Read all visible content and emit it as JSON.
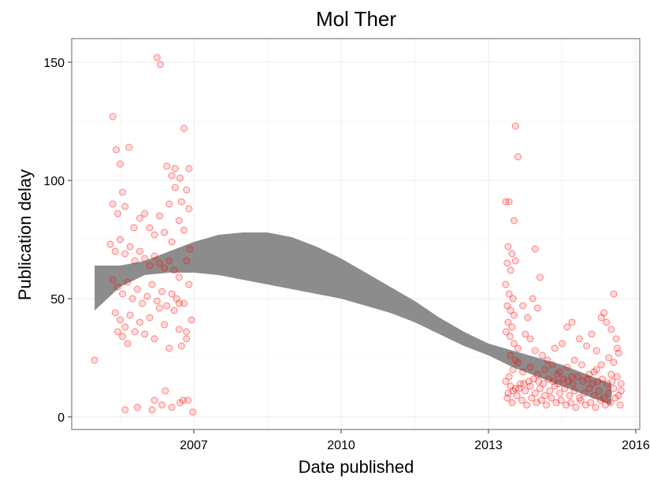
{
  "chart_data": {
    "type": "scatter",
    "title": "Mol Ther",
    "xlabel": "Date published",
    "ylabel": "Publication delay",
    "x_ticks": [
      {
        "x": 2007,
        "label": "2007"
      },
      {
        "x": 2010,
        "label": "2010"
      },
      {
        "x": 2013,
        "label": "2013"
      },
      {
        "x": 2016,
        "label": "2016"
      }
    ],
    "y_ticks": [
      {
        "y": 0,
        "label": "0"
      },
      {
        "y": 50,
        "label": "50"
      },
      {
        "y": 100,
        "label": "100"
      },
      {
        "y": 150,
        "label": "150"
      }
    ],
    "xlim": [
      2004.4,
      2016
    ],
    "ylim": [
      -5,
      160
    ],
    "grid": true,
    "point_color": "#ff0000",
    "band_color": "#8c8c8c",
    "smooth_band": [
      {
        "x": 2004.98,
        "lo": 45,
        "hi": 64
      },
      {
        "x": 2005.5,
        "lo": 55,
        "hi": 64
      },
      {
        "x": 2006.0,
        "lo": 60,
        "hi": 66
      },
      {
        "x": 2006.5,
        "lo": 61,
        "hi": 70
      },
      {
        "x": 2007.0,
        "lo": 61,
        "hi": 74
      },
      {
        "x": 2007.5,
        "lo": 60,
        "hi": 77
      },
      {
        "x": 2008.0,
        "lo": 58,
        "hi": 78
      },
      {
        "x": 2008.5,
        "lo": 56,
        "hi": 78
      },
      {
        "x": 2009.0,
        "lo": 54,
        "hi": 76
      },
      {
        "x": 2009.5,
        "lo": 52,
        "hi": 72
      },
      {
        "x": 2010.0,
        "lo": 50,
        "hi": 67
      },
      {
        "x": 2010.5,
        "lo": 47,
        "hi": 61
      },
      {
        "x": 2011.0,
        "lo": 44,
        "hi": 55
      },
      {
        "x": 2011.5,
        "lo": 40,
        "hi": 49
      },
      {
        "x": 2012.0,
        "lo": 35,
        "hi": 42
      },
      {
        "x": 2012.5,
        "lo": 30,
        "hi": 36
      },
      {
        "x": 2013.0,
        "lo": 26,
        "hi": 31
      },
      {
        "x": 2013.5,
        "lo": 21,
        "hi": 28
      },
      {
        "x": 2014.0,
        "lo": 17,
        "hi": 25
      },
      {
        "x": 2014.5,
        "lo": 13,
        "hi": 22
      },
      {
        "x": 2015.0,
        "lo": 9,
        "hi": 18
      },
      {
        "x": 2015.5,
        "lo": 5,
        "hi": 14
      }
    ],
    "points": [
      [
        2004.98,
        24
      ],
      [
        2005.35,
        127
      ],
      [
        2005.42,
        113
      ],
      [
        2005.5,
        107
      ],
      [
        2005.68,
        114
      ],
      [
        2005.55,
        95
      ],
      [
        2005.35,
        90
      ],
      [
        2005.45,
        86
      ],
      [
        2005.6,
        89
      ],
      [
        2005.78,
        80
      ],
      [
        2005.9,
        84
      ],
      [
        2006.0,
        86
      ],
      [
        2006.1,
        80
      ],
      [
        2006.2,
        77
      ],
      [
        2005.3,
        73
      ],
      [
        2005.4,
        70
      ],
      [
        2005.5,
        75
      ],
      [
        2005.6,
        69
      ],
      [
        2005.7,
        72
      ],
      [
        2005.8,
        66
      ],
      [
        2005.9,
        70
      ],
      [
        2006.0,
        67
      ],
      [
        2006.1,
        64
      ],
      [
        2006.2,
        68
      ],
      [
        2006.3,
        65
      ],
      [
        2006.4,
        63
      ],
      [
        2006.5,
        66
      ],
      [
        2006.6,
        62
      ],
      [
        2005.35,
        58
      ],
      [
        2005.45,
        55
      ],
      [
        2005.55,
        52
      ],
      [
        2005.65,
        57
      ],
      [
        2005.75,
        50
      ],
      [
        2005.85,
        54
      ],
      [
        2005.95,
        48
      ],
      [
        2006.05,
        51
      ],
      [
        2006.15,
        56
      ],
      [
        2006.25,
        49
      ],
      [
        2006.35,
        53
      ],
      [
        2006.45,
        47
      ],
      [
        2006.55,
        52
      ],
      [
        2006.65,
        50
      ],
      [
        2005.4,
        44
      ],
      [
        2005.5,
        41
      ],
      [
        2005.6,
        38
      ],
      [
        2005.7,
        43
      ],
      [
        2005.8,
        36
      ],
      [
        2005.9,
        40
      ],
      [
        2006.0,
        35
      ],
      [
        2006.1,
        42
      ],
      [
        2006.2,
        33
      ],
      [
        2006.3,
        46
      ],
      [
        2006.4,
        39
      ],
      [
        2006.5,
        29
      ],
      [
        2006.6,
        45
      ],
      [
        2006.7,
        37
      ],
      [
        2005.45,
        36
      ],
      [
        2005.55,
        34
      ],
      [
        2005.65,
        31
      ],
      [
        2006.75,
        30
      ],
      [
        2006.8,
        48
      ],
      [
        2006.85,
        36
      ],
      [
        2006.25,
        152
      ],
      [
        2006.32,
        149
      ],
      [
        2006.8,
        122
      ],
      [
        2006.45,
        106
      ],
      [
        2006.62,
        105
      ],
      [
        2006.9,
        105
      ],
      [
        2006.55,
        102
      ],
      [
        2006.72,
        101
      ],
      [
        2006.62,
        97
      ],
      [
        2006.85,
        96
      ],
      [
        2006.75,
        91
      ],
      [
        2006.9,
        88
      ],
      [
        2006.5,
        90
      ],
      [
        2006.3,
        85
      ],
      [
        2006.7,
        83
      ],
      [
        2006.8,
        79
      ],
      [
        2006.4,
        78
      ],
      [
        2006.55,
        74
      ],
      [
        2006.92,
        71
      ],
      [
        2006.85,
        66
      ],
      [
        2006.7,
        59
      ],
      [
        2006.9,
        56
      ],
      [
        2006.95,
        41
      ],
      [
        2006.85,
        33
      ],
      [
        2006.7,
        48
      ],
      [
        2005.6,
        3
      ],
      [
        2005.85,
        4
      ],
      [
        2006.15,
        3
      ],
      [
        2006.35,
        5
      ],
      [
        2006.42,
        11
      ],
      [
        2006.55,
        4
      ],
      [
        2006.72,
        6
      ],
      [
        2006.78,
        7
      ],
      [
        2006.88,
        7
      ],
      [
        2006.98,
        2
      ],
      [
        2006.2,
        7
      ],
      [
        2013.35,
        91
      ],
      [
        2013.42,
        91
      ],
      [
        2013.55,
        123
      ],
      [
        2013.6,
        110
      ],
      [
        2013.52,
        83
      ],
      [
        2013.95,
        71
      ],
      [
        2014.05,
        59
      ],
      [
        2013.4,
        72
      ],
      [
        2013.48,
        69
      ],
      [
        2013.38,
        65
      ],
      [
        2013.45,
        62
      ],
      [
        2013.55,
        66
      ],
      [
        2013.35,
        56
      ],
      [
        2013.42,
        52
      ],
      [
        2013.5,
        50
      ],
      [
        2013.38,
        47
      ],
      [
        2013.45,
        45
      ],
      [
        2013.52,
        43
      ],
      [
        2013.4,
        40
      ],
      [
        2013.48,
        38
      ],
      [
        2013.36,
        36
      ],
      [
        2013.44,
        34
      ],
      [
        2013.52,
        31
      ],
      [
        2013.6,
        29
      ],
      [
        2013.7,
        47
      ],
      [
        2013.8,
        42
      ],
      [
        2013.9,
        50
      ],
      [
        2014.0,
        46
      ],
      [
        2013.75,
        35
      ],
      [
        2013.85,
        33
      ],
      [
        2013.95,
        28
      ],
      [
        2014.1,
        26
      ],
      [
        2014.2,
        24
      ],
      [
        2014.35,
        29
      ],
      [
        2014.5,
        31
      ],
      [
        2014.6,
        38
      ],
      [
        2014.7,
        40
      ],
      [
        2014.85,
        33
      ],
      [
        2015.0,
        30
      ],
      [
        2015.1,
        35
      ],
      [
        2015.2,
        28
      ],
      [
        2015.3,
        42
      ],
      [
        2015.35,
        44
      ],
      [
        2015.4,
        40
      ],
      [
        2015.5,
        37
      ],
      [
        2015.55,
        52
      ],
      [
        2015.6,
        33
      ],
      [
        2015.62,
        29
      ],
      [
        2015.65,
        27
      ],
      [
        2015.55,
        23
      ],
      [
        2015.45,
        25
      ],
      [
        2015.3,
        22
      ],
      [
        2015.2,
        20
      ],
      [
        2015.05,
        18
      ],
      [
        2014.9,
        22
      ],
      [
        2014.75,
        24
      ],
      [
        2014.6,
        21
      ],
      [
        2014.45,
        19
      ],
      [
        2014.3,
        22
      ],
      [
        2014.15,
        20
      ],
      [
        2014.0,
        18
      ],
      [
        2013.85,
        21
      ],
      [
        2013.7,
        19
      ],
      [
        2013.6,
        23
      ],
      [
        2013.5,
        20
      ],
      [
        2013.42,
        17
      ],
      [
        2013.35,
        15
      ],
      [
        2013.45,
        13
      ],
      [
        2013.55,
        12
      ],
      [
        2013.65,
        14
      ],
      [
        2013.75,
        11
      ],
      [
        2013.85,
        13
      ],
      [
        2013.95,
        10
      ],
      [
        2014.05,
        12
      ],
      [
        2014.15,
        9
      ],
      [
        2014.25,
        11
      ],
      [
        2014.35,
        13
      ],
      [
        2014.45,
        10
      ],
      [
        2014.55,
        12
      ],
      [
        2014.65,
        9
      ],
      [
        2014.75,
        11
      ],
      [
        2014.85,
        8
      ],
      [
        2014.95,
        10
      ],
      [
        2015.05,
        12
      ],
      [
        2015.15,
        9
      ],
      [
        2015.25,
        11
      ],
      [
        2015.35,
        8
      ],
      [
        2015.45,
        10
      ],
      [
        2015.55,
        12
      ],
      [
        2015.65,
        9
      ],
      [
        2015.7,
        11
      ],
      [
        2013.38,
        8
      ],
      [
        2013.48,
        6
      ],
      [
        2013.58,
        9
      ],
      [
        2013.68,
        7
      ],
      [
        2013.78,
        5
      ],
      [
        2013.88,
        8
      ],
      [
        2013.98,
        6
      ],
      [
        2014.08,
        7
      ],
      [
        2014.18,
        5
      ],
      [
        2014.28,
        8
      ],
      [
        2014.38,
        6
      ],
      [
        2014.48,
        7
      ],
      [
        2014.58,
        5
      ],
      [
        2014.68,
        6
      ],
      [
        2014.78,
        4
      ],
      [
        2014.88,
        7
      ],
      [
        2014.98,
        5
      ],
      [
        2015.08,
        6
      ],
      [
        2015.18,
        4
      ],
      [
        2015.28,
        7
      ],
      [
        2015.38,
        5
      ],
      [
        2015.48,
        6
      ],
      [
        2015.58,
        8
      ],
      [
        2015.68,
        5
      ],
      [
        2013.4,
        10
      ],
      [
        2013.5,
        11
      ],
      [
        2013.62,
        12
      ],
      [
        2013.72,
        14
      ],
      [
        2013.82,
        15
      ],
      [
        2013.92,
        16
      ],
      [
        2014.02,
        15
      ],
      [
        2014.12,
        14
      ],
      [
        2014.22,
        16
      ],
      [
        2014.32,
        15
      ],
      [
        2014.42,
        14
      ],
      [
        2014.52,
        16
      ],
      [
        2014.62,
        15
      ],
      [
        2014.72,
        14
      ],
      [
        2014.82,
        17
      ],
      [
        2014.92,
        15
      ],
      [
        2015.02,
        16
      ],
      [
        2015.12,
        14
      ],
      [
        2015.22,
        15
      ],
      [
        2015.32,
        16
      ],
      [
        2015.42,
        14
      ],
      [
        2015.52,
        15
      ],
      [
        2015.62,
        17
      ],
      [
        2015.7,
        14
      ],
      [
        2013.45,
        26
      ],
      [
        2013.55,
        24
      ],
      [
        2014.4,
        18
      ],
      [
        2014.7,
        17
      ],
      [
        2015.15,
        19
      ],
      [
        2015.5,
        18
      ]
    ]
  }
}
